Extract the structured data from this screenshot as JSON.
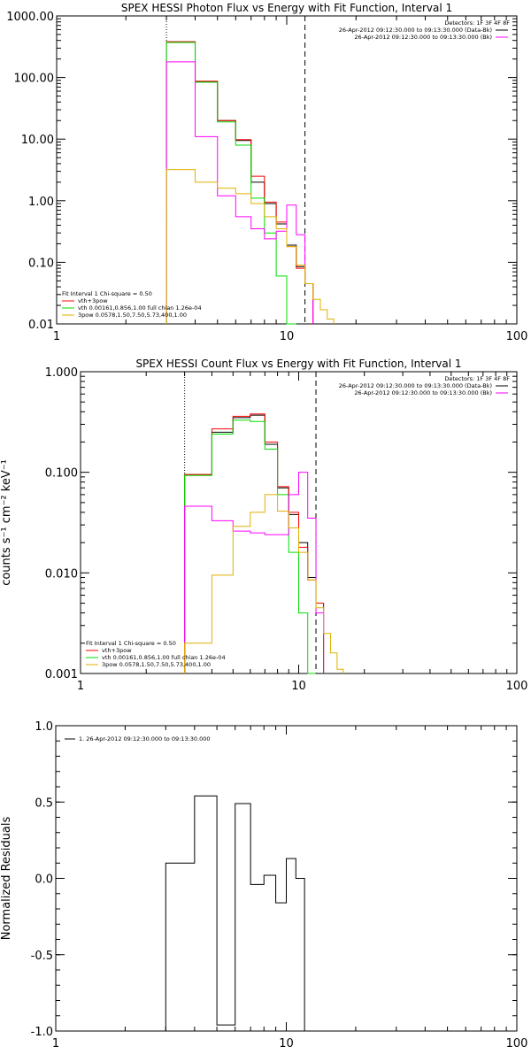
{
  "chart_data": [
    {
      "type": "line",
      "title": "SPEX HESSI Photon Flux vs Energy with Fit Function, Interval 1",
      "xlabel": "",
      "ylabel": "",
      "xscale": "log",
      "yscale": "log",
      "xlim": [
        1,
        100
      ],
      "ylim": [
        0.01,
        1000
      ],
      "x_ticks": [
        "1",
        "10",
        "100"
      ],
      "y_ticks": [
        "0.01",
        "0.10",
        "1.00",
        "10.00",
        "100.00",
        "1000.00"
      ],
      "detectors": "Detectors: 1F 3F 4F 8F",
      "time_labels": [
        "26-Apr-2012 09:12:30.000 to 09:13:30.000 (Data-Bk)",
        "26-Apr-2012 09:12:30.000 to 09:13:30.000 (Bk)"
      ],
      "fit_legend": {
        "header": "Fit Interval 1   Chi-square = 0.50",
        "entries": [
          "vth+3pow",
          "vth 0.00161,0.856,1.00   full chian 1.26e-04",
          "3pow 0.0578,1.50,7.50,5.73,400,1.00"
        ]
      },
      "vlines": [
        {
          "x": 3,
          "style": "dotted"
        },
        {
          "x": 12,
          "style": "dashed"
        }
      ],
      "bin_edges": [
        3,
        4,
        5,
        6,
        7,
        8,
        9,
        10,
        11,
        12,
        13,
        14,
        15,
        16
      ],
      "series": [
        {
          "color": "#000000",
          "values": [
            380,
            85,
            20,
            9.5,
            2.0,
            0.9,
            0.42,
            0.19,
            0.085,
            0.045,
            null,
            null,
            null
          ]
        },
        {
          "color": "#ff0000",
          "values": [
            380,
            87,
            20,
            9.8,
            2.5,
            0.95,
            0.45,
            0.18,
            0.08,
            0.045,
            null,
            null,
            null
          ]
        },
        {
          "color": "#00dd00",
          "values": [
            370,
            84,
            19,
            8.0,
            1.1,
            0.3,
            0.06,
            0.01,
            null,
            null,
            null,
            null,
            null
          ]
        },
        {
          "color": "#ff00ff",
          "values": [
            180,
            11,
            1.2,
            0.55,
            0.35,
            0.24,
            0.32,
            0.85,
            0.28,
            0.045,
            null,
            null,
            null
          ]
        },
        {
          "color": "#e0b000",
          "values": [
            3.2,
            2.0,
            1.6,
            1.3,
            0.9,
            0.55,
            0.35,
            0.18,
            0.09,
            0.045,
            0.025,
            0.017,
            0.012
          ]
        }
      ]
    },
    {
      "type": "line",
      "title": "SPEX HESSI Count Flux vs Energy with Fit Function, Interval 1",
      "xlabel": "",
      "ylabel": "counts s⁻¹ cm⁻² keV⁻¹",
      "xscale": "log",
      "yscale": "log",
      "xlim": [
        1,
        100
      ],
      "ylim": [
        0.001,
        1
      ],
      "x_ticks": [
        "1",
        "10",
        "100"
      ],
      "y_ticks": [
        "0.001",
        "0.010",
        "0.100",
        "1.000"
      ],
      "detectors": "Detectors: 1F 3F 4F 8F",
      "time_labels": [
        "26-Apr-2012 09:12:30.000 to 09:13:30.000 (Data-Bk)",
        "26-Apr-2012 09:12:30.000 to 09:13:30.000 (Bk)"
      ],
      "fit_legend": {
        "header": "Fit Interval 1   Chi-square = 0.50",
        "entries": [
          "vth+3pow",
          "vth 0.00161,0.856,1.00   full chian 1.26e-04",
          "3pow 0.0578,1.50,7.50,5.73,400,1.00"
        ]
      },
      "vlines": [
        {
          "x": 3,
          "style": "dotted"
        },
        {
          "x": 12,
          "style": "dashed"
        }
      ],
      "bin_edges": [
        3,
        4,
        5,
        6,
        7,
        8,
        9,
        10,
        11,
        12,
        13,
        14,
        15,
        16
      ],
      "series": [
        {
          "color": "#000000",
          "values": [
            0.095,
            0.25,
            0.35,
            0.37,
            0.19,
            0.07,
            0.038,
            0.02,
            0.009,
            0.005,
            null,
            null,
            null
          ]
        },
        {
          "color": "#ff0000",
          "values": [
            0.095,
            0.27,
            0.36,
            0.38,
            0.2,
            0.072,
            0.04,
            0.018,
            0.0085,
            0.005,
            null,
            null,
            null
          ]
        },
        {
          "color": "#00dd00",
          "values": [
            0.093,
            0.24,
            0.33,
            0.32,
            0.17,
            0.06,
            0.016,
            0.004,
            0.0008,
            null,
            null,
            null,
            null
          ]
        },
        {
          "color": "#ff00ff",
          "values": [
            0.046,
            0.033,
            0.026,
            0.025,
            0.024,
            0.024,
            0.06,
            0.1,
            0.035,
            0.004,
            null,
            null,
            null
          ]
        },
        {
          "color": "#e0b000",
          "values": [
            0.002,
            0.0095,
            0.029,
            0.04,
            0.06,
            0.041,
            0.028,
            0.016,
            0.0085,
            0.0045,
            0.0025,
            0.0016,
            0.0011
          ]
        }
      ]
    },
    {
      "type": "line",
      "title": "",
      "xlabel": "",
      "ylabel": "Normalized Residuals",
      "xscale": "log",
      "yscale": "linear",
      "xlim": [
        1,
        100
      ],
      "ylim": [
        -1,
        1
      ],
      "x_ticks": [
        "1",
        "10",
        "100"
      ],
      "y_ticks": [
        "-1.0",
        "-0.5",
        "0.0",
        "0.5",
        "1.0"
      ],
      "legend": [
        "1. 26-Apr-2012 09:12:30.000 to 09:13:30.000"
      ],
      "bin_edges": [
        3,
        4,
        5,
        6,
        7,
        8,
        9,
        10,
        11,
        12
      ],
      "series": [
        {
          "color": "#000000",
          "values": [
            0.1,
            0.54,
            -0.96,
            0.49,
            -0.04,
            0.02,
            -0.16,
            0.13,
            0.0
          ]
        }
      ]
    }
  ]
}
